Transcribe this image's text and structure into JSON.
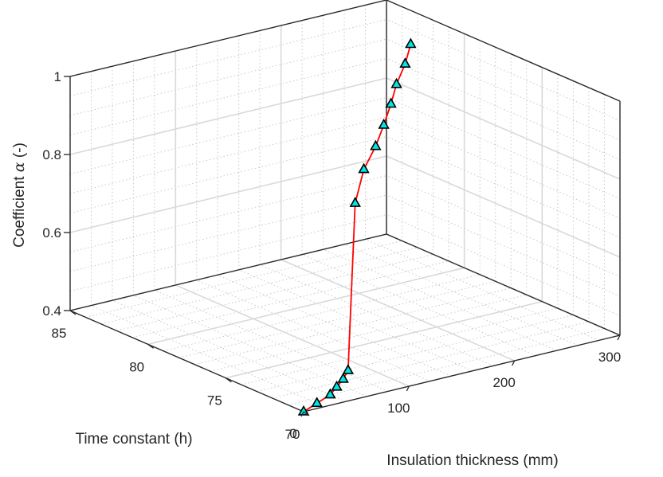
{
  "chart_data": {
    "type": "line3d",
    "xlabel": "Insulation thickness (mm)",
    "ylabel": "Time constant (h)",
    "zlabel_prefix": "Coefficient ",
    "zlabel_symbol": "α",
    "zlabel_suffix": " (-)",
    "xlim": [
      0,
      300
    ],
    "ylim": [
      70,
      85
    ],
    "zlim": [
      0.4,
      1.0
    ],
    "xticks": [
      "0",
      "100",
      "200",
      "300"
    ],
    "yticks": [
      "70",
      "75",
      "80",
      "85"
    ],
    "zticks": [
      "0.4",
      "0.6",
      "0.8",
      "1"
    ],
    "grid": true,
    "series": [
      {
        "line_color": "#ff0000",
        "marker": "triangle",
        "marker_color": "#00e5e5",
        "points": [
          {
            "x": 0,
            "y": 70.0,
            "z": 0.4
          },
          {
            "x": 20,
            "y": 70.5,
            "z": 0.4
          },
          {
            "x": 40,
            "y": 71.0,
            "z": 0.4
          },
          {
            "x": 55,
            "y": 71.6,
            "z": 0.4
          },
          {
            "x": 70,
            "y": 72.2,
            "z": 0.4
          },
          {
            "x": 85,
            "y": 72.9,
            "z": 0.4
          },
          {
            "x": 105,
            "y": 73.8,
            "z": 0.8
          },
          {
            "x": 125,
            "y": 74.6,
            "z": 0.86
          },
          {
            "x": 148,
            "y": 75.4,
            "z": 0.89
          },
          {
            "x": 172,
            "y": 76.5,
            "z": 0.91
          },
          {
            "x": 195,
            "y": 77.6,
            "z": 0.93
          },
          {
            "x": 215,
            "y": 78.6,
            "z": 0.95
          },
          {
            "x": 238,
            "y": 79.6,
            "z": 0.97
          },
          {
            "x": 258,
            "y": 80.6,
            "z": 0.99
          }
        ]
      }
    ]
  }
}
